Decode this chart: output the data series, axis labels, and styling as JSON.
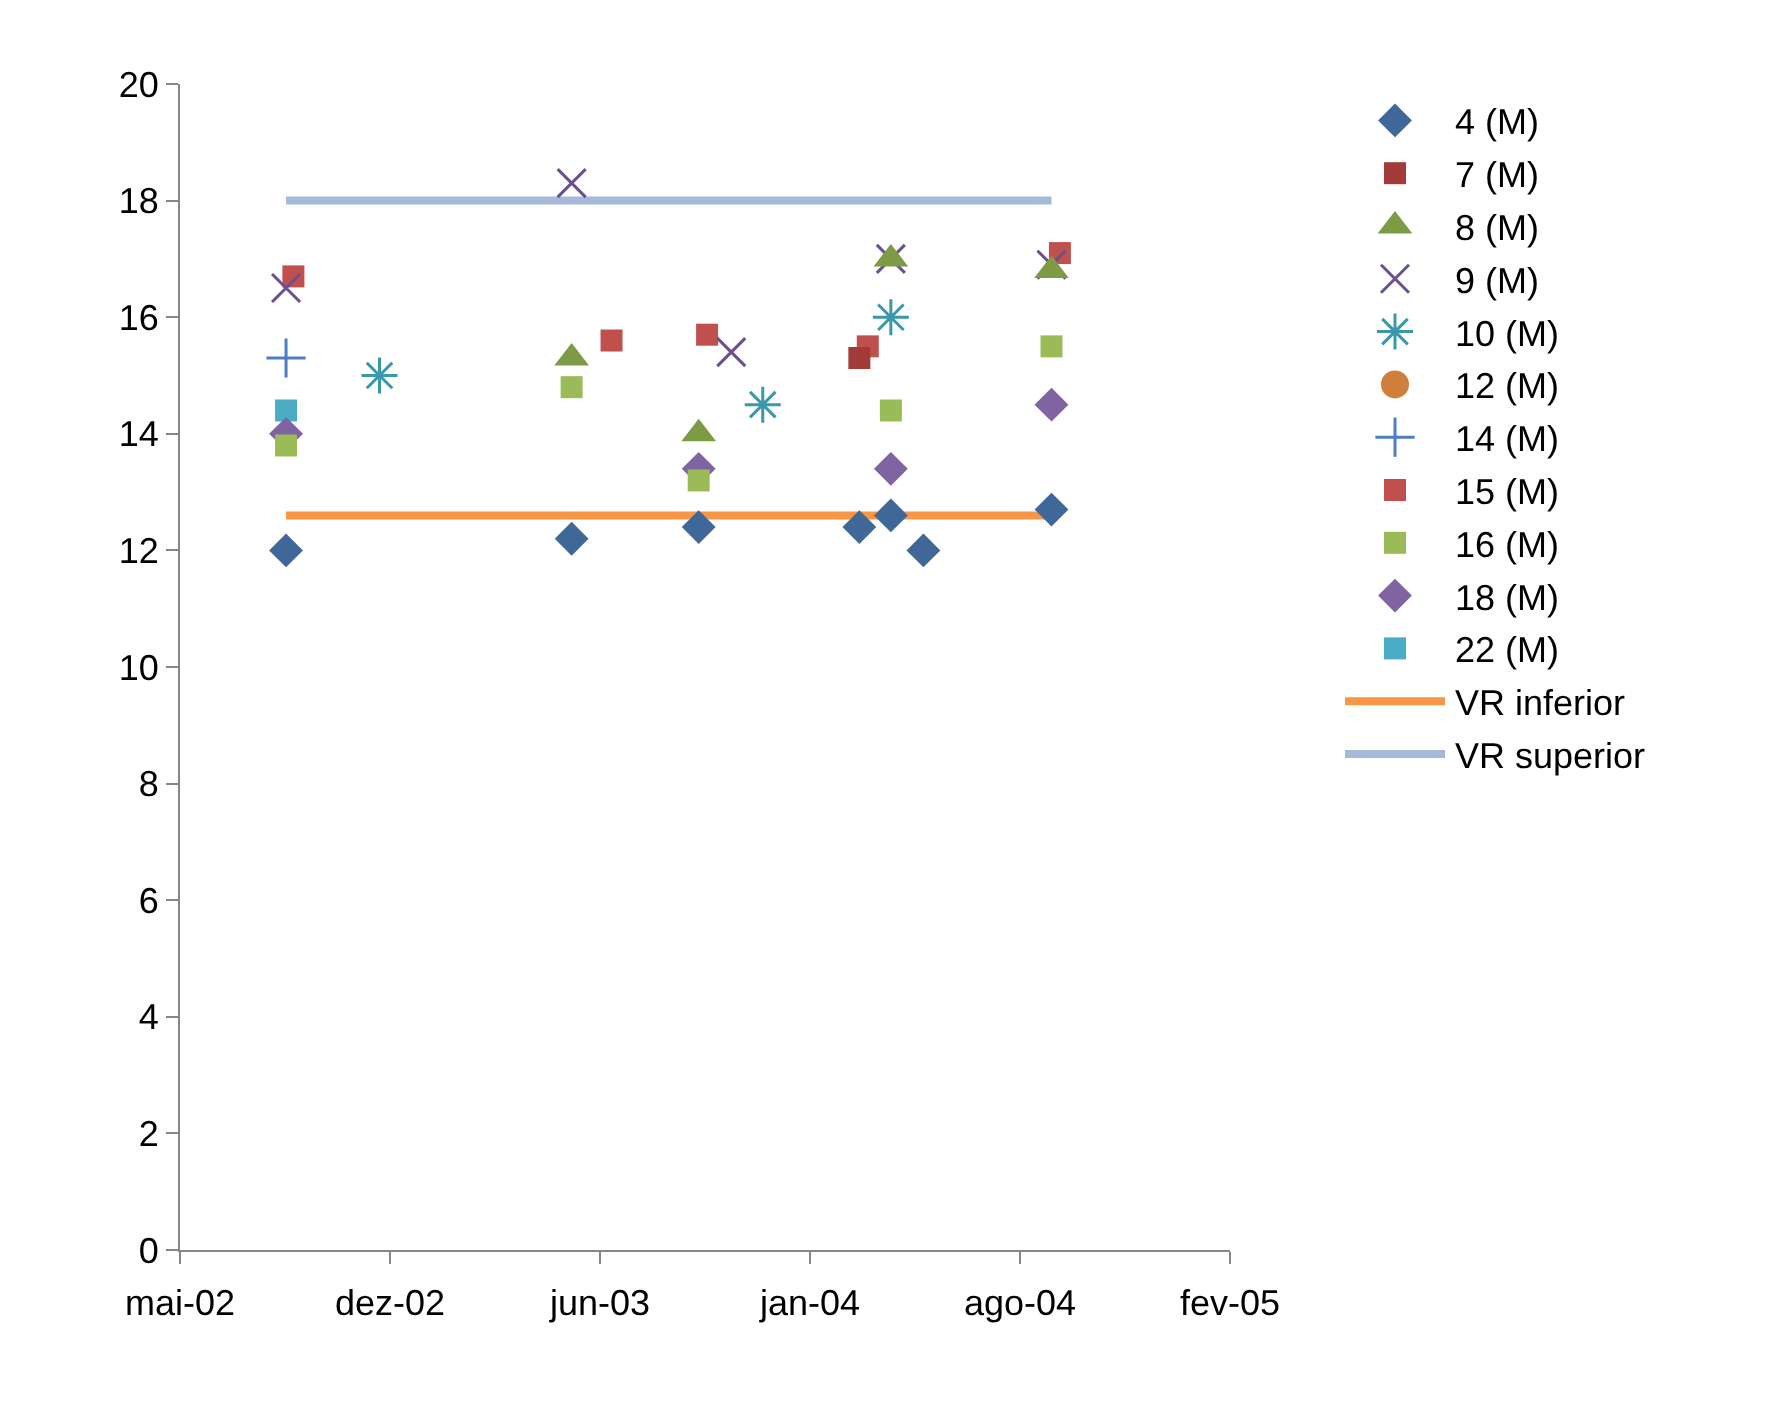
{
  "chart_data": {
    "type": "scatter",
    "xlim": [
      "2002-05-25",
      "2005-02-18"
    ],
    "xticks": [
      {
        "value": "2002-05-25",
        "label": "mai-02"
      },
      {
        "value": "2002-12-11",
        "label": "dez-02"
      },
      {
        "value": "2003-06-29",
        "label": "jun-03"
      },
      {
        "value": "2004-01-15",
        "label": "jan-04"
      },
      {
        "value": "2004-08-02",
        "label": "ago-04"
      },
      {
        "value": "2005-02-18",
        "label": "fev-05"
      }
    ],
    "ylim": [
      0,
      20
    ],
    "yticks": [
      0,
      2,
      4,
      6,
      8,
      10,
      12,
      14,
      16,
      18,
      20
    ],
    "grid": false,
    "legend": "right",
    "series": [
      {
        "name": "4 (M)",
        "color": "#3f6797",
        "marker": "diamond",
        "x": [
          "2002-09-03",
          "2003-06-02",
          "2003-10-01",
          "2004-03-02",
          "2004-04-01",
          "2004-05-02",
          "2004-09-01"
        ],
        "values": [
          12.0,
          12.2,
          12.4,
          12.4,
          12.6,
          12.0,
          12.7
        ]
      },
      {
        "name": "7 (M)",
        "color": "#a33a3a",
        "marker": "square",
        "x": [
          "2004-03-02"
        ],
        "values": [
          15.3
        ]
      },
      {
        "name": "8 (M)",
        "color": "#7d9b44",
        "marker": "triangle",
        "x": [
          "2003-06-02",
          "2003-10-01",
          "2004-04-01",
          "2004-09-01"
        ],
        "values": [
          15.3,
          14.0,
          17.0,
          16.8
        ]
      },
      {
        "name": "9 (M)",
        "color": "#6b4f8e",
        "marker": "x",
        "x": [
          "2002-09-03",
          "2003-06-02",
          "2003-11-01",
          "2004-04-01",
          "2004-09-01"
        ],
        "values": [
          16.5,
          18.3,
          15.4,
          17.0,
          16.9
        ]
      },
      {
        "name": "10 (M)",
        "color": "#3b98ab",
        "x": [
          "2002-12-01",
          "2003-12-01",
          "2004-04-01"
        ],
        "values": [
          15.0,
          14.5,
          16.0
        ]
      },
      {
        "name": "12 (M)",
        "color": "#d07f3a",
        "marker": "circle"
      },
      {
        "name": "14 (M)",
        "color": "#4f7fc0",
        "marker": "cross",
        "x": [
          "2002-09-03"
        ],
        "values": [
          15.3
        ]
      },
      {
        "name": "15 (M)",
        "color": "#c0504d",
        "marker": "square",
        "x": [
          "2002-09-10",
          "2003-07-10",
          "2003-10-09",
          "2004-03-10",
          "2004-09-09"
        ],
        "values": [
          16.7,
          15.6,
          15.7,
          15.5,
          17.1
        ]
      },
      {
        "name": "16 (M)",
        "color": "#9bbb59",
        "marker": "square",
        "x": [
          "2002-09-03",
          "2003-06-02",
          "2003-10-01",
          "2004-04-01",
          "2004-09-01"
        ],
        "values": [
          13.8,
          14.8,
          13.2,
          14.4,
          15.5
        ]
      },
      {
        "name": "18 (M)",
        "color": "#8064a2",
        "marker": "diamond",
        "x": [
          "2002-09-03",
          "2003-10-01",
          "2004-04-01",
          "2004-09-01"
        ],
        "values": [
          14.0,
          13.4,
          13.4,
          14.5
        ]
      },
      {
        "name": "22 (M)",
        "color": "#4bacc6",
        "marker": "square",
        "x": [
          "2002-09-03"
        ],
        "values": [
          14.4
        ]
      },
      {
        "name": "VR inferior",
        "color": "#f79646",
        "type": "line",
        "marker": "none",
        "line_style": "solid",
        "x": [
          "2002-09-03",
          "2004-09-01"
        ],
        "values": [
          12.6,
          12.6
        ]
      },
      {
        "name": "VR superior",
        "color": "#a5b9d9",
        "type": "line",
        "marker": "none",
        "line_style": "solid",
        "x": [
          "2002-09-03",
          "2004-09-01"
        ],
        "values": [
          18.0,
          18.0
        ]
      }
    ]
  }
}
